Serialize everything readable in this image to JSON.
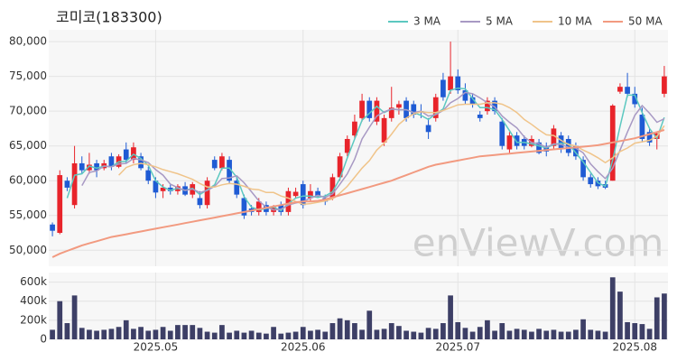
{
  "chart_data": {
    "type": "candlestick",
    "title": "코미코(183300)",
    "watermark": "enViewV.com",
    "categories": [
      null,
      null,
      null,
      null,
      null,
      null,
      null,
      null,
      null,
      null,
      null,
      null,
      null,
      null,
      "2025.05",
      null,
      null,
      null,
      null,
      null,
      null,
      null,
      null,
      null,
      null,
      null,
      null,
      null,
      null,
      null,
      null,
      null,
      null,
      null,
      "2025.06",
      null,
      null,
      null,
      null,
      null,
      null,
      null,
      null,
      null,
      null,
      null,
      null,
      null,
      null,
      null,
      null,
      null,
      null,
      null,
      null,
      "2025.07",
      null,
      null,
      null,
      null,
      null,
      null,
      null,
      null,
      null,
      null,
      null,
      null,
      null,
      null,
      null,
      null,
      null,
      null,
      null,
      null,
      null,
      null,
      null,
      "2025.08",
      null,
      null,
      null,
      null
    ],
    "ohlc": [
      [
        53700,
        54000,
        52000,
        52800
      ],
      [
        52500,
        61500,
        52300,
        60800
      ],
      [
        60000,
        60500,
        58500,
        59000
      ],
      [
        56500,
        65000,
        56000,
        62500
      ],
      [
        62500,
        63500,
        61000,
        61500
      ],
      [
        61500,
        64000,
        61000,
        62300
      ],
      [
        62500,
        63000,
        60500,
        61500
      ],
      [
        61800,
        63000,
        61500,
        62500
      ],
      [
        63500,
        64000,
        61500,
        62000
      ],
      [
        62000,
        63800,
        61800,
        63500
      ],
      [
        64500,
        65500,
        62500,
        63000
      ],
      [
        63000,
        65500,
        62500,
        64800
      ],
      [
        63500,
        64000,
        61500,
        61800
      ],
      [
        61500,
        62000,
        59500,
        60000
      ],
      [
        60000,
        60500,
        57500,
        58300
      ],
      [
        58500,
        59500,
        57500,
        59000
      ],
      [
        59000,
        59500,
        58000,
        58500
      ],
      [
        58500,
        59500,
        58000,
        59200
      ],
      [
        59200,
        59800,
        57800,
        58000
      ],
      [
        58000,
        59800,
        57500,
        59500
      ],
      [
        57500,
        58500,
        56000,
        56500
      ],
      [
        56500,
        60500,
        56000,
        60000
      ],
      [
        63000,
        63500,
        61500,
        61800
      ],
      [
        61800,
        64000,
        61500,
        63500
      ],
      [
        63000,
        63500,
        59500,
        60000
      ],
      [
        60000,
        60500,
        57500,
        58000
      ],
      [
        57500,
        58000,
        54500,
        55000
      ],
      [
        56000,
        56500,
        55000,
        55500
      ],
      [
        55500,
        57500,
        55000,
        57000
      ],
      [
        56500,
        57000,
        55000,
        55500
      ],
      [
        55500,
        56500,
        55000,
        56200
      ],
      [
        56500,
        57000,
        55000,
        55500
      ],
      [
        55500,
        59000,
        55000,
        58500
      ],
      [
        57800,
        59000,
        57500,
        58400
      ],
      [
        59500,
        60000,
        56000,
        56500
      ],
      [
        57500,
        59500,
        57000,
        58500
      ],
      [
        58500,
        59000,
        57500,
        57800
      ],
      [
        57500,
        58000,
        56500,
        57000
      ],
      [
        57500,
        61000,
        57200,
        60500
      ],
      [
        60500,
        64000,
        60000,
        63500
      ],
      [
        64000,
        66500,
        63500,
        66000
      ],
      [
        66500,
        69500,
        66000,
        68500
      ],
      [
        69000,
        72500,
        68500,
        71500
      ],
      [
        71500,
        72000,
        68500,
        69000
      ],
      [
        68500,
        72000,
        68000,
        71500
      ],
      [
        65500,
        69500,
        65000,
        69000
      ],
      [
        69000,
        73500,
        68500,
        70500
      ],
      [
        70500,
        71500,
        69500,
        71000
      ],
      [
        71500,
        72000,
        68500,
        69000
      ],
      [
        71000,
        71500,
        69000,
        69500
      ],
      [
        70000,
        71000,
        69000,
        69800
      ],
      [
        68000,
        69000,
        66000,
        67000
      ],
      [
        69000,
        72500,
        68500,
        72000
      ],
      [
        74500,
        75500,
        71500,
        72000
      ],
      [
        73000,
        80000,
        72500,
        75000
      ],
      [
        75000,
        76000,
        72500,
        73000
      ],
      [
        73000,
        74000,
        71000,
        71500
      ],
      [
        72000,
        72500,
        70500,
        71000
      ],
      [
        69500,
        70000,
        68500,
        69000
      ],
      [
        70000,
        72000,
        69500,
        71500
      ],
      [
        71500,
        72000,
        69500,
        70000
      ],
      [
        68500,
        69000,
        64500,
        65000
      ],
      [
        64500,
        67000,
        64000,
        66500
      ],
      [
        66500,
        67000,
        64500,
        65000
      ],
      [
        66000,
        66500,
        64500,
        65000
      ],
      [
        65000,
        66500,
        64800,
        66000
      ],
      [
        65500,
        66000,
        63800,
        64000
      ],
      [
        65000,
        65500,
        63500,
        64200
      ],
      [
        65000,
        68000,
        64500,
        67500
      ],
      [
        66500,
        67000,
        64000,
        64500
      ],
      [
        66000,
        66500,
        63500,
        64000
      ],
      [
        65000,
        65500,
        63000,
        63500
      ],
      [
        63000,
        63500,
        60000,
        60500
      ],
      [
        60500,
        61000,
        59000,
        59500
      ],
      [
        60000,
        60500,
        58800,
        59200
      ],
      [
        59500,
        60000,
        58800,
        59000
      ],
      [
        60000,
        71000,
        60000,
        70800
      ],
      [
        72800,
        74000,
        72500,
        73500
      ],
      [
        73500,
        75500,
        72000,
        72500
      ],
      [
        72500,
        73500,
        70500,
        71000
      ],
      [
        69500,
        70500,
        65500,
        66000
      ],
      [
        67000,
        67500,
        65000,
        65500
      ],
      [
        66000,
        67000,
        64500,
        66800
      ],
      [
        72500,
        76500,
        72000,
        75000
      ]
    ],
    "up_color": "#e8242b",
    "down_color": "#1f5bd4",
    "ylim": [
      47700,
      81700
    ],
    "yticks": [
      {
        "value": 50000,
        "label": "50,000"
      },
      {
        "value": 55000,
        "label": "55,000"
      },
      {
        "value": 60000,
        "label": "60,000"
      },
      {
        "value": 65000,
        "label": "65,000"
      },
      {
        "value": 70000,
        "label": "70,000"
      },
      {
        "value": 75000,
        "label": "75,000"
      },
      {
        "value": 80000,
        "label": "80,000"
      }
    ],
    "grid": true,
    "series": [
      {
        "name": "3 MA",
        "color": "#5cc8c0",
        "values": [
          null,
          null,
          57500,
          60800,
          61000,
          62100,
          61800,
          62100,
          62000,
          62700,
          62800,
          63800,
          63200,
          62200,
          60000,
          59100,
          58600,
          58900,
          58600,
          58900,
          58000,
          58700,
          59400,
          61800,
          61800,
          60500,
          57700,
          56200,
          55800,
          56000,
          56200,
          55700,
          56700,
          57500,
          57800,
          57800,
          57600,
          57800,
          58400,
          60300,
          63300,
          66000,
          68700,
          69700,
          70700,
          69800,
          70300,
          70200,
          70200,
          69800,
          69400,
          68800,
          69600,
          70300,
          73000,
          73300,
          73200,
          71800,
          70500,
          70500,
          70200,
          68800,
          67200,
          65500,
          65500,
          65300,
          65000,
          64700,
          65200,
          65400,
          65300,
          64000,
          62700,
          61200,
          59700,
          59200,
          63000,
          67800,
          72300,
          72300,
          69800,
          67500,
          66100,
          69100
        ]
      },
      {
        "name": "5 MA",
        "color": "#a899c4",
        "values": [
          null,
          null,
          null,
          null,
          59300,
          61200,
          61400,
          62100,
          62000,
          62400,
          62500,
          63200,
          63000,
          62600,
          61600,
          60800,
          59500,
          59000,
          58600,
          58800,
          58300,
          58600,
          59200,
          60300,
          60400,
          60700,
          59700,
          58400,
          57100,
          56200,
          55800,
          55900,
          56500,
          56800,
          57000,
          57500,
          57900,
          57600,
          58100,
          59500,
          61000,
          63100,
          66000,
          67700,
          69300,
          69900,
          70300,
          70200,
          70200,
          69800,
          70000,
          69300,
          69500,
          70100,
          71200,
          71800,
          72700,
          72500,
          71900,
          71200,
          70600,
          69300,
          68400,
          67600,
          66300,
          65500,
          65300,
          64800,
          65300,
          65200,
          64800,
          64700,
          64000,
          62400,
          61300,
          60300,
          61800,
          64400,
          67000,
          69400,
          70800,
          69700,
          68400,
          68900
        ]
      },
      {
        "name": "10 MA",
        "color": "#f0c48a",
        "values": [
          null,
          null,
          null,
          null,
          null,
          null,
          null,
          null,
          null,
          60800,
          61900,
          62300,
          62500,
          62300,
          62000,
          61600,
          61300,
          61000,
          60600,
          60200,
          59600,
          59100,
          59100,
          59400,
          59600,
          59500,
          59200,
          58800,
          58700,
          58300,
          58300,
          57800,
          57500,
          57000,
          56600,
          56700,
          56900,
          57100,
          57400,
          58200,
          59200,
          60500,
          61800,
          62900,
          64400,
          65400,
          66700,
          68100,
          69000,
          69600,
          69900,
          69800,
          69800,
          70100,
          70500,
          70900,
          71000,
          71000,
          71000,
          71200,
          71200,
          71000,
          70500,
          69800,
          68800,
          68100,
          67300,
          66600,
          66500,
          65800,
          65200,
          65000,
          64400,
          63900,
          63300,
          62600,
          63300,
          64200,
          64700,
          65400,
          65600,
          65800,
          66400,
          67900
        ]
      },
      {
        "name": "50 MA",
        "color": "#f29a80",
        "values": [
          49000,
          49500,
          49900,
          50300,
          50700,
          51000,
          51300,
          51600,
          51900,
          52100,
          52300,
          52500,
          52700,
          52900,
          53100,
          53300,
          53500,
          53700,
          53900,
          54100,
          54300,
          54500,
          54700,
          54900,
          55100,
          55300,
          55500,
          55700,
          55900,
          56100,
          56300,
          56500,
          56700,
          56900,
          57000,
          57000,
          57100,
          57300,
          57600,
          57900,
          58200,
          58500,
          58800,
          59100,
          59400,
          59700,
          60000,
          60400,
          60800,
          61200,
          61600,
          62000,
          62300,
          62500,
          62700,
          62900,
          63100,
          63300,
          63500,
          63600,
          63700,
          63800,
          63900,
          64000,
          64100,
          64200,
          64300,
          64400,
          64500,
          64600,
          64700,
          64800,
          64900,
          65000,
          65100,
          65300,
          65500,
          65700,
          65900,
          66100,
          66400,
          66700,
          67000,
          67300
        ]
      }
    ],
    "volume": {
      "color": "#3d3f66",
      "ylim": [
        0,
        700000
      ],
      "yticks": [
        0,
        {
          "value": 200000,
          "label": "200k"
        },
        {
          "value": 400000,
          "label": "400k"
        },
        {
          "value": 600000,
          "label": "600k"
        }
      ],
      "values": [
        100000,
        400000,
        170000,
        460000,
        120000,
        100000,
        90000,
        100000,
        110000,
        130000,
        200000,
        110000,
        130000,
        90000,
        100000,
        130000,
        90000,
        150000,
        150000,
        150000,
        120000,
        80000,
        70000,
        150000,
        70000,
        90000,
        70000,
        90000,
        70000,
        60000,
        130000,
        60000,
        70000,
        80000,
        130000,
        90000,
        100000,
        80000,
        170000,
        220000,
        200000,
        170000,
        100000,
        300000,
        100000,
        110000,
        170000,
        140000,
        90000,
        80000,
        70000,
        120000,
        110000,
        170000,
        460000,
        180000,
        120000,
        80000,
        130000,
        200000,
        90000,
        170000,
        90000,
        110000,
        100000,
        80000,
        110000,
        90000,
        100000,
        80000,
        80000,
        100000,
        210000,
        100000,
        90000,
        80000,
        650000,
        500000,
        180000,
        170000,
        160000,
        110000,
        440000,
        480000
      ]
    }
  }
}
